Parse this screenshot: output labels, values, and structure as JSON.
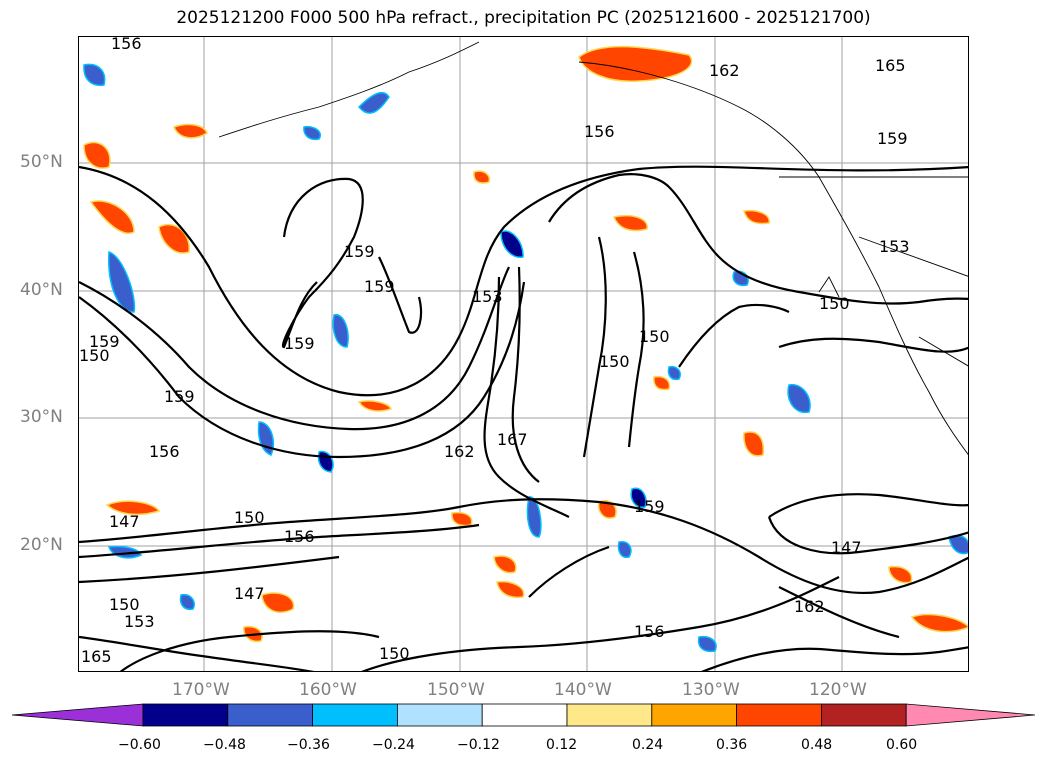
{
  "title": "2025121200 F000 500 hPa refract., precipitation PC (2025121600 - 2025121700)",
  "lat_labels": [
    "50°N",
    "40°N",
    "30°N",
    "20°N"
  ],
  "lon_labels": [
    "170°W",
    "160°W",
    "150°W",
    "140°W",
    "130°W",
    "120°W"
  ],
  "contour_labels": [
    "156",
    "162",
    "165",
    "159",
    "156",
    "159",
    "153",
    "159",
    "153",
    "150",
    "150",
    "159",
    "159",
    "159",
    "150",
    "162",
    "167",
    "150",
    "156",
    "159",
    "156",
    "147",
    "147",
    "150",
    "153",
    "150",
    "156",
    "162",
    "165",
    "147",
    "150"
  ],
  "colorbar": {
    "ticks": [
      "−0.60",
      "−0.48",
      "−0.36",
      "−0.24",
      "−0.12",
      "0.12",
      "0.24",
      "0.36",
      "0.48",
      "0.60"
    ],
    "colors": [
      "#9b30d9",
      "#00008b",
      "#3a5fcd",
      "#00bfff",
      "#b0e2ff",
      "#ffffff",
      "#ffe88a",
      "#ffa500",
      "#ff4500",
      "#b22222",
      "#ff89b0"
    ]
  }
}
